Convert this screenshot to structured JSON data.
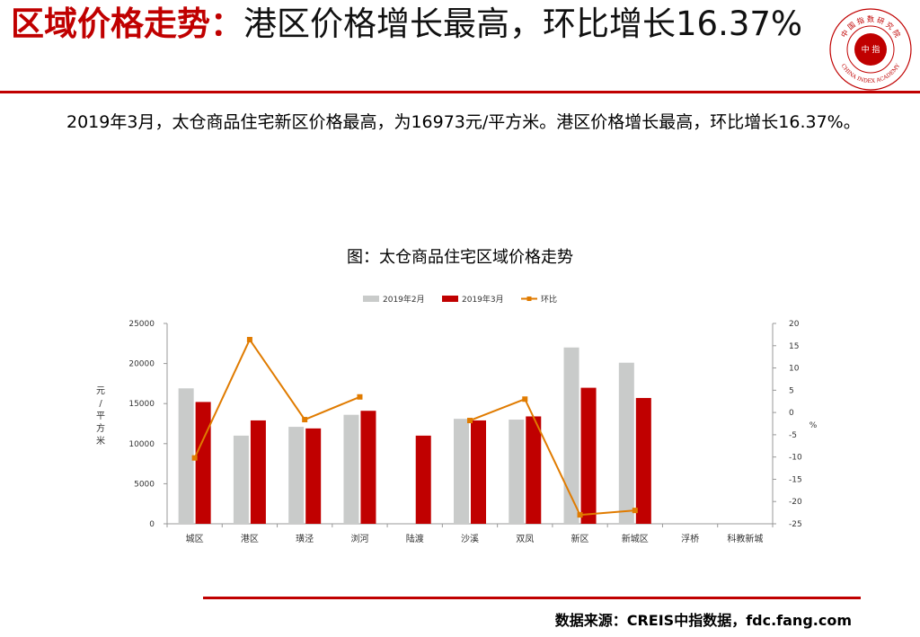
{
  "header": {
    "title_highlight": "区域价格走势：",
    "title_rest": "港区价格增长最高，环比增长16.37%"
  },
  "logo": {
    "arc_text": "中 国 指 数 研 究 院",
    "center_text": "中 指",
    "english_text": "CHINA INDEX ACADEMY"
  },
  "body": {
    "paragraph": "2019年3月，太仓商品住宅新区价格最高，为16973元/平方米。港区价格增长最高，环比增长16.37%。"
  },
  "chart_data": {
    "type": "bar",
    "title": "图：太仓商品住宅区域价格走势",
    "categories": [
      "城区",
      "港区",
      "璜泾",
      "浏河",
      "陆渡",
      "沙溪",
      "双凤",
      "新区",
      "新城区",
      "浮桥",
      "科教新城"
    ],
    "series": [
      {
        "name": "2019年2月",
        "type": "bar",
        "axis": "left",
        "values": [
          16900,
          11000,
          12100,
          13600,
          null,
          13100,
          13000,
          22000,
          20100,
          null,
          null
        ]
      },
      {
        "name": "2019年3月",
        "type": "bar",
        "axis": "left",
        "values": [
          15200,
          12900,
          11900,
          14100,
          11000,
          12900,
          13400,
          16973,
          15700,
          null,
          null
        ]
      },
      {
        "name": "环比",
        "type": "line",
        "axis": "right",
        "values": [
          -10.2,
          16.37,
          -1.6,
          3.5,
          null,
          -1.8,
          3.0,
          -23.0,
          -22.0,
          null,
          null
        ]
      }
    ],
    "ylabel": "元/平方米",
    "ylim": [
      0,
      25000
    ],
    "yticks": [
      0,
      5000,
      10000,
      15000,
      20000,
      25000
    ],
    "y2label": "%",
    "y2lim": [
      -25,
      20
    ],
    "y2ticks": [
      20,
      15,
      10,
      5,
      0,
      -5,
      -10,
      -15,
      -20,
      -25
    ],
    "legend_position": "top",
    "grid": false
  },
  "colors": {
    "accent": "#c00000",
    "bar_feb": "#c9cbca",
    "bar_mar": "#c00000",
    "line": "#e07b00"
  },
  "footer": {
    "source": "数据来源：CREIS中指数据，fdc.fang.com"
  }
}
